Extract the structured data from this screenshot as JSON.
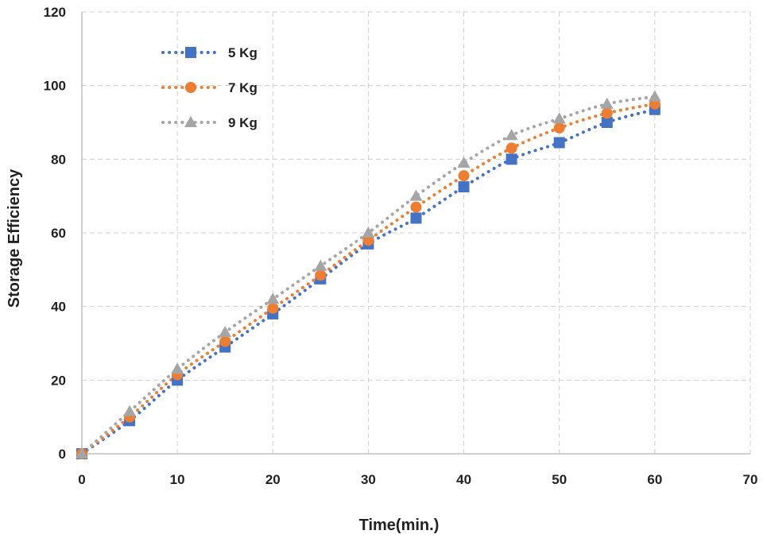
{
  "chart_data": {
    "type": "line",
    "title": "",
    "xlabel": "Time(min.)",
    "ylabel": "Storage Efficiency",
    "xlim": [
      0,
      70
    ],
    "ylim": [
      0,
      120
    ],
    "xticks": [
      0,
      10,
      20,
      30,
      40,
      50,
      60,
      70
    ],
    "yticks": [
      0,
      20,
      40,
      60,
      80,
      100,
      120
    ],
    "grid": true,
    "legend_position": "top-left",
    "x": [
      0,
      5,
      10,
      15,
      20,
      25,
      30,
      35,
      40,
      45,
      50,
      55,
      60
    ],
    "series": [
      {
        "name": "5 Kg",
        "color": "#4472C4",
        "marker": "square",
        "values": [
          0,
          9,
          20,
          29,
          38,
          47.5,
          57,
          64,
          72.5,
          80,
          84.5,
          90,
          93.5
        ]
      },
      {
        "name": "7 Kg",
        "color": "#ED7D31",
        "marker": "circle",
        "values": [
          0,
          10,
          21.5,
          30.5,
          39.5,
          48.5,
          58,
          67,
          75.5,
          83,
          88.5,
          92.5,
          95
        ]
      },
      {
        "name": "9 Kg",
        "color": "#A5A5A5",
        "marker": "triangle",
        "values": [
          0,
          11.5,
          23,
          33,
          42,
          51,
          60,
          70,
          79,
          86.5,
          91,
          95,
          97
        ]
      }
    ]
  }
}
